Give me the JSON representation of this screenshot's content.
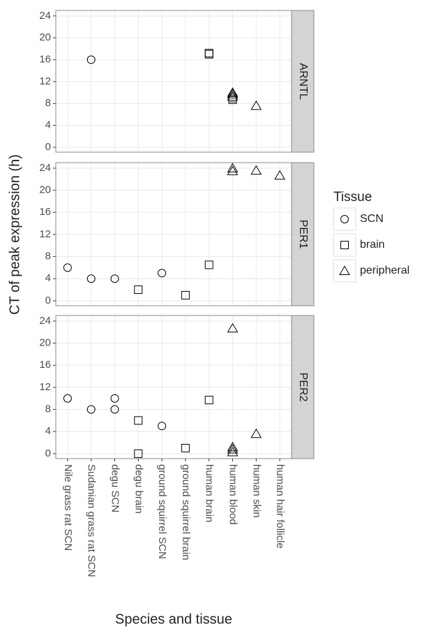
{
  "chart_data": [
    {
      "type": "scatter",
      "title": "ARNTL",
      "ylim": [
        -0.9,
        25
      ],
      "yticks": [
        0,
        4,
        8,
        12,
        16,
        20,
        24
      ],
      "series": [
        {
          "name": "SCN",
          "x": [
            "Sudanian grass rat SCN"
          ],
          "values": [
            16
          ]
        },
        {
          "name": "brain",
          "x": [
            "human brain",
            "human brain",
            "human blood",
            "human blood"
          ],
          "values": [
            17,
            17.2,
            8.7,
            9
          ]
        },
        {
          "name": "peripheral",
          "x": [
            "human blood",
            "human blood",
            "human blood",
            "human skin"
          ],
          "values": [
            9.3,
            9.7,
            10,
            7.6
          ]
        }
      ]
    },
    {
      "type": "scatter",
      "title": "PER1",
      "ylim": [
        -0.9,
        25
      ],
      "yticks": [
        0,
        4,
        8,
        12,
        16,
        20,
        24
      ],
      "series": [
        {
          "name": "SCN",
          "x": [
            "Nile grass rat SCN",
            "Sudanian grass rat SCN",
            "degu SCN",
            "ground squirrel SCN"
          ],
          "values": [
            6,
            4,
            4,
            5
          ]
        },
        {
          "name": "brain",
          "x": [
            "degu brain",
            "ground squirrel brain",
            "human brain"
          ],
          "values": [
            2,
            1,
            6.5
          ]
        },
        {
          "name": "peripheral",
          "x": [
            "human blood",
            "human blood",
            "human skin",
            "human hair follicle"
          ],
          "values": [
            23.5,
            24,
            23.6,
            22.7
          ]
        }
      ]
    },
    {
      "type": "scatter",
      "title": "PER2",
      "ylim": [
        -0.9,
        25
      ],
      "yticks": [
        0,
        4,
        8,
        12,
        16,
        20,
        24
      ],
      "categories": [
        "Nile grass rat SCN",
        "Sudanian grass rat SCN",
        "degu SCN",
        "degu brain",
        "ground squirrel SCN",
        "ground squirrel brain",
        "human brain",
        "human blood",
        "human skin",
        "human hair follicle"
      ],
      "series": [
        {
          "name": "SCN",
          "x": [
            "Nile grass rat SCN",
            "Sudanian grass rat SCN",
            "degu SCN",
            "degu SCN",
            "ground squirrel SCN"
          ],
          "values": [
            10,
            8,
            10,
            8,
            5
          ]
        },
        {
          "name": "brain",
          "x": [
            "degu brain",
            "degu brain",
            "ground squirrel brain",
            "human brain"
          ],
          "values": [
            6,
            0,
            1,
            9.7
          ]
        },
        {
          "name": "peripheral",
          "x": [
            "human blood",
            "human blood",
            "human blood",
            "human blood",
            "human skin"
          ],
          "values": [
            22.7,
            0.3,
            0.8,
            1.2,
            3.6
          ]
        }
      ]
    }
  ],
  "x_label": "Species and tissue",
  "y_label": "CT of peak expression (h)",
  "legend_title": "Tissue"
}
